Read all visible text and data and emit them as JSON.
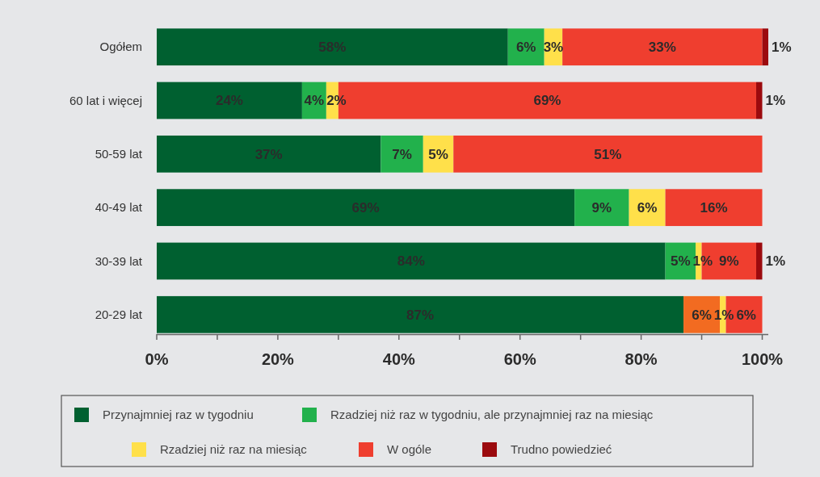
{
  "chart_data": {
    "type": "bar",
    "orientation": "horizontal",
    "stacked": true,
    "categories": [
      "Ogółem",
      "60 lat i więcej",
      "50-59 lat",
      "40-49 lat",
      "30-39 lat",
      "20-29 lat"
    ],
    "series": [
      {
        "name": "Przynajmniej raz w tygodniu",
        "color": "#006030",
        "values": [
          58,
          24,
          37,
          69,
          84,
          87
        ],
        "value_labels": [
          "58%",
          "24%",
          "37%",
          "69%",
          "84%",
          "87%"
        ]
      },
      {
        "name": "Rzadziej niż raz w tygodniu, ale przynajmniej raz na miesiąc",
        "color": "#22b14c",
        "colors": [
          "#22b14c",
          "#22b14c",
          "#22b14c",
          "#22b14c",
          "#22b14c",
          "#f26b21"
        ],
        "values": [
          6,
          4,
          7,
          9,
          5,
          6
        ],
        "value_labels": [
          "6%",
          "4%",
          "7%",
          "9%",
          "5%",
          "6%"
        ]
      },
      {
        "name": "Rzadziej niż raz na miesiąc",
        "color": "#ffe04a",
        "values": [
          3,
          2,
          5,
          6,
          1,
          1
        ],
        "value_labels": [
          "3%",
          "2%",
          "5%",
          "6%",
          "1%",
          "1%"
        ]
      },
      {
        "name": "W ogóle",
        "color": "#ef3e2f",
        "values": [
          33,
          69,
          51,
          16,
          9,
          6
        ],
        "value_labels": [
          "33%",
          "69%",
          "51%",
          "16%",
          "9%",
          "6%"
        ]
      },
      {
        "name": "Trudno powiedzieć",
        "color": "#9b0a0e",
        "values": [
          1,
          1,
          null,
          null,
          1,
          null
        ],
        "value_labels": [
          "1%",
          "1%",
          null,
          null,
          "1%",
          null
        ]
      }
    ],
    "xlim": [
      0,
      101
    ],
    "xticks": [
      {
        "value": 0,
        "label": "0%"
      },
      {
        "value": 10,
        "label": null
      },
      {
        "value": 20,
        "label": "20%"
      },
      {
        "value": 30,
        "label": null
      },
      {
        "value": 40,
        "label": "40%"
      },
      {
        "value": 50,
        "label": null
      },
      {
        "value": 60,
        "label": "60%"
      },
      {
        "value": 70,
        "label": null
      },
      {
        "value": 80,
        "label": "80%"
      },
      {
        "value": 90,
        "label": null
      },
      {
        "value": 100,
        "label": "100%"
      }
    ],
    "grid": false,
    "legend": "bottom"
  }
}
